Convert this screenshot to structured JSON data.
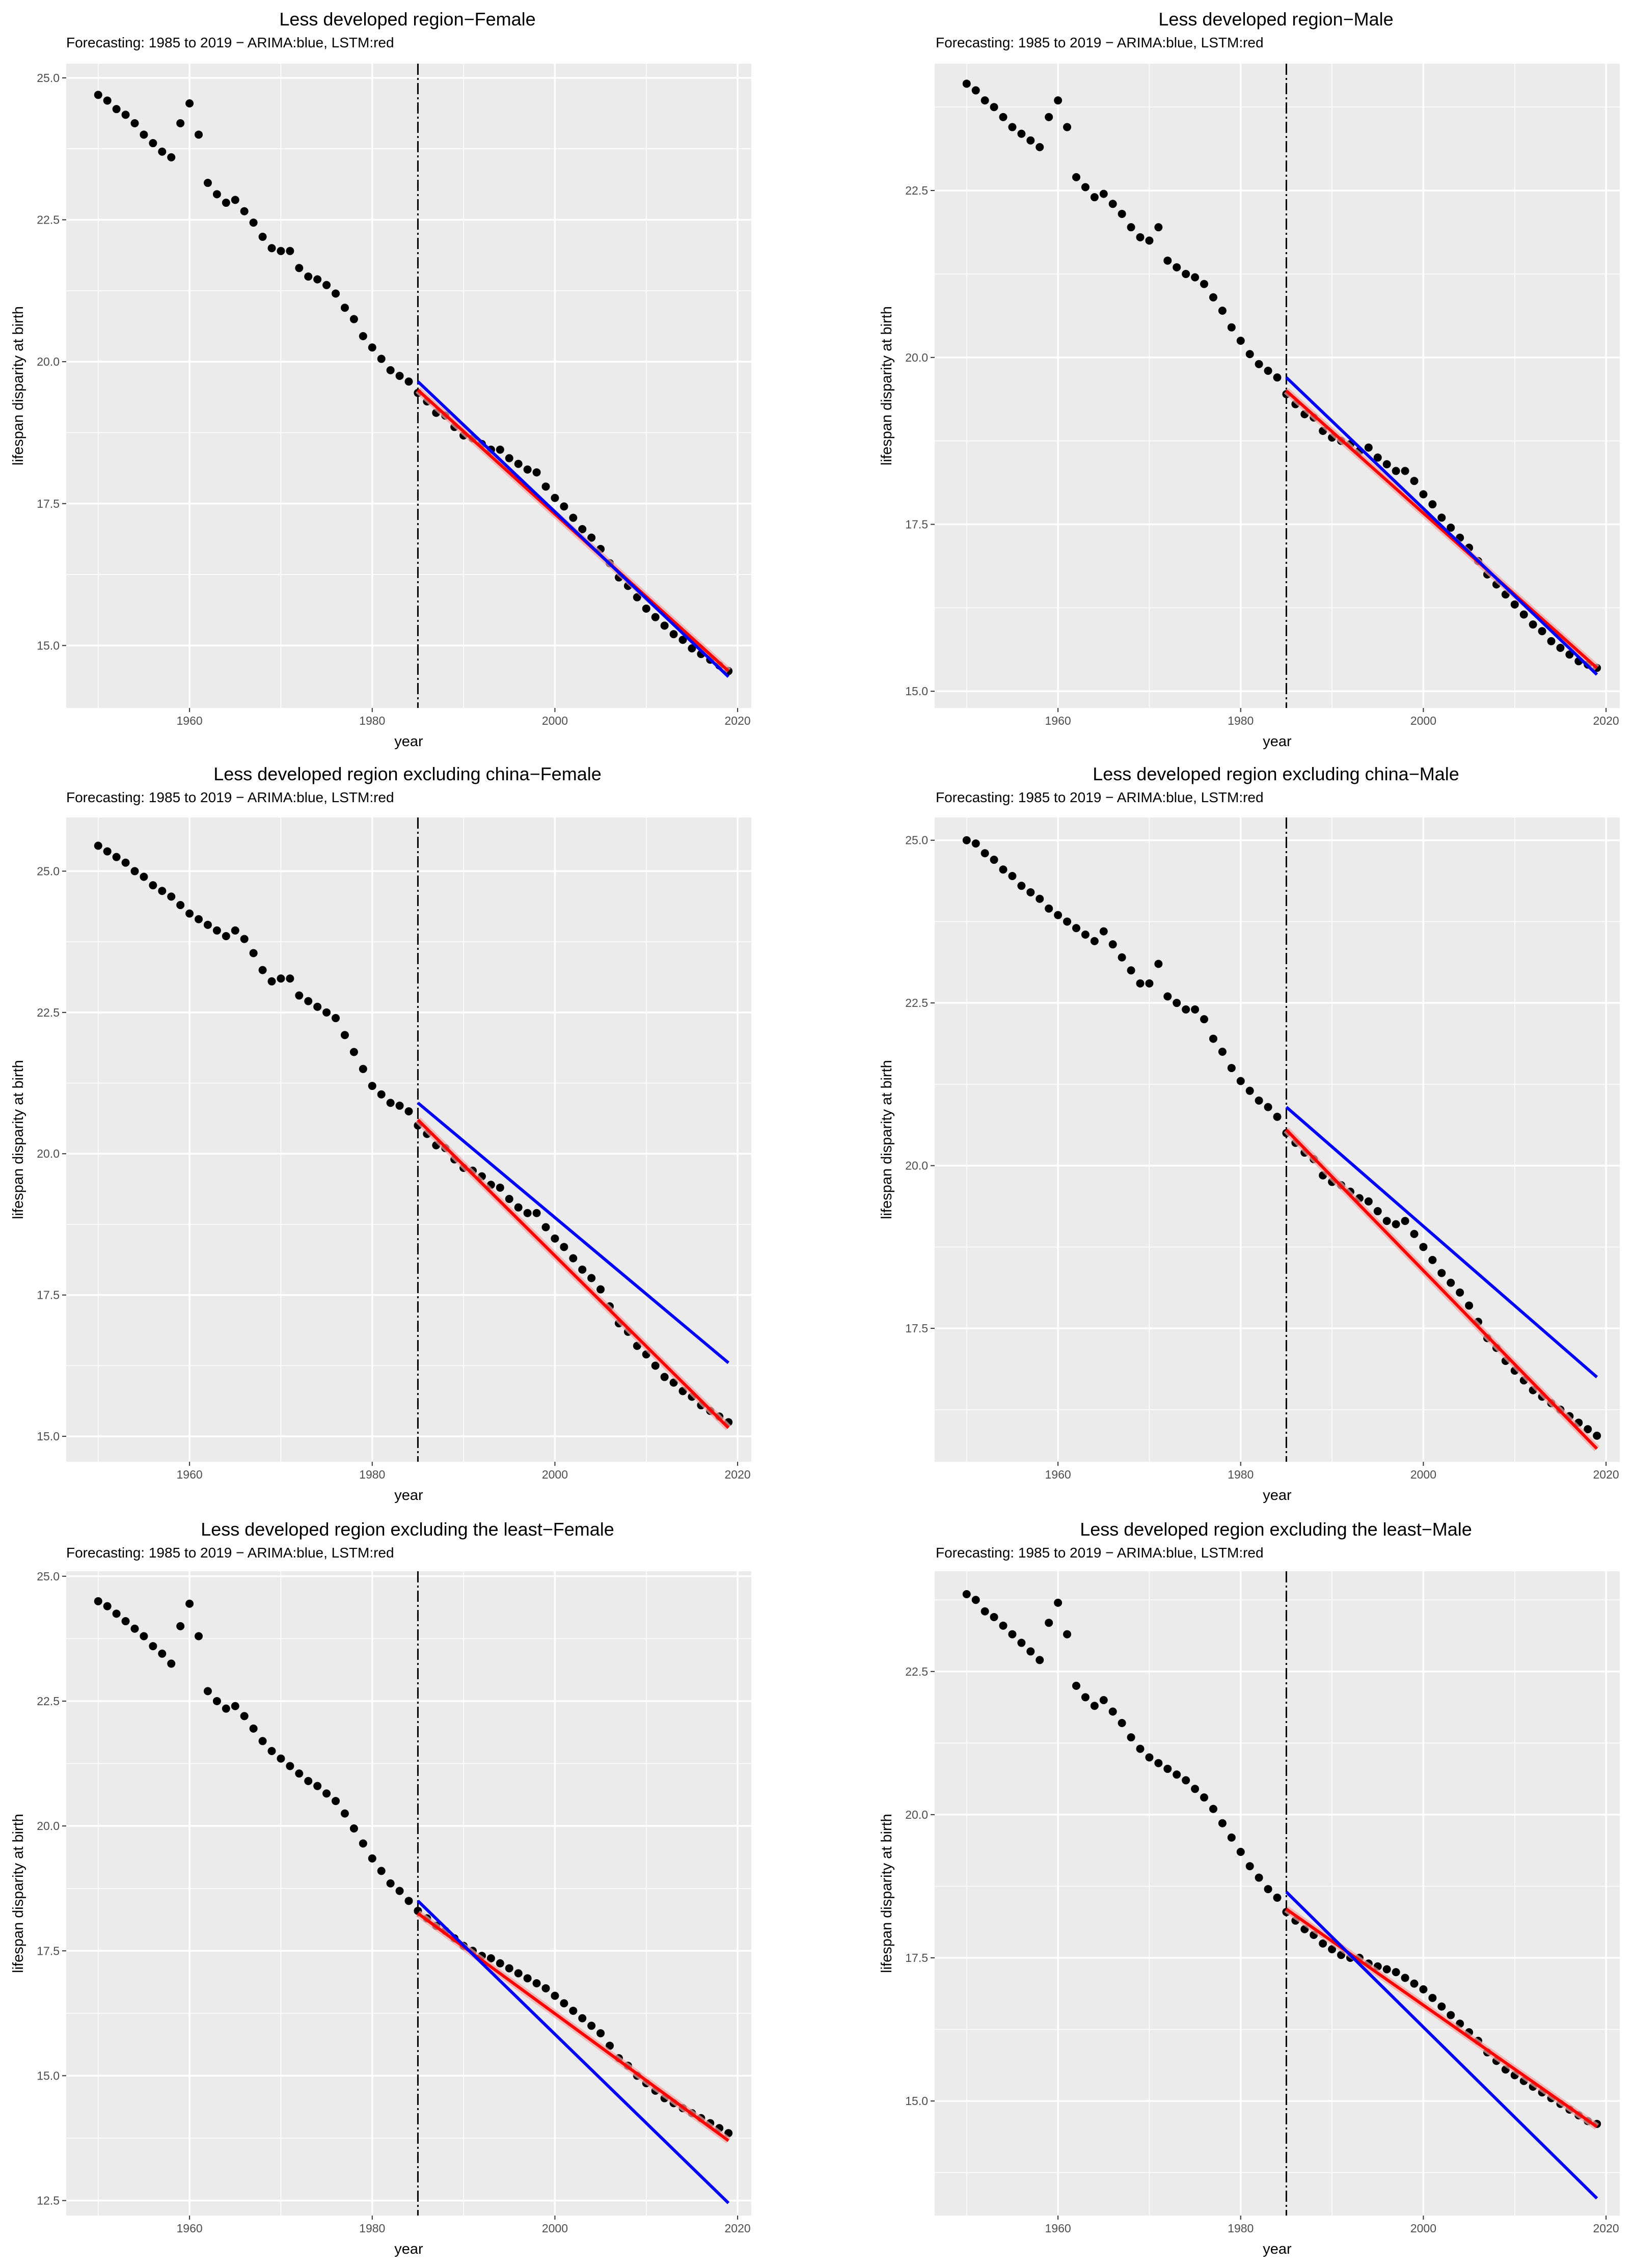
{
  "figure": {
    "subtitle": "Forecasting: 1985 to 2019 − ARIMA:blue, LSTM:red",
    "xlabel": "year",
    "ylabel": "lifespan disparity at birth",
    "colors": {
      "arima": "#0000ff",
      "lstm": "#ff0000",
      "points": "#000000",
      "panel": "#ebebeb",
      "grid": "#ffffff",
      "vline": "#000000"
    }
  },
  "chart_data": [
    {
      "type": "scatter",
      "title": "Less developed region−Female",
      "xlabel": "year",
      "ylabel": "lifespan disparity at birth",
      "xlim": [
        1946.5,
        2021.5
      ],
      "ylim": [
        13.9,
        25.25
      ],
      "xticks": [
        1960,
        1980,
        2000,
        2020
      ],
      "xtick_labels": [
        "1960",
        "1980",
        "2000",
        "2020"
      ],
      "yticks": [
        15,
        17.5,
        20,
        22.5,
        25
      ],
      "ytick_labels": [
        "15.0",
        "17.5",
        "20.0",
        "22.5",
        "25.0"
      ],
      "vline_x": 1985,
      "series": [
        {
          "name": "observed",
          "x_start": 1950,
          "y": [
            24.7,
            24.6,
            24.45,
            24.35,
            24.2,
            24.0,
            23.85,
            23.7,
            23.6,
            24.2,
            24.55,
            24.0,
            23.15,
            22.95,
            22.8,
            22.85,
            22.65,
            22.45,
            22.2,
            22.0,
            21.95,
            21.95,
            21.65,
            21.5,
            21.45,
            21.35,
            21.2,
            20.95,
            20.75,
            20.45,
            20.25,
            20.05,
            19.85,
            19.75,
            19.65,
            19.45,
            19.3,
            19.1,
            19.05,
            18.85,
            18.7,
            18.65,
            18.55,
            18.45,
            18.45,
            18.3,
            18.2,
            18.1,
            18.05,
            17.8,
            17.6,
            17.45,
            17.25,
            17.05,
            16.9,
            16.7,
            16.45,
            16.2,
            16.05,
            15.85,
            15.65,
            15.5,
            15.35,
            15.2,
            15.1,
            14.95,
            14.85,
            14.75,
            14.65,
            14.55
          ]
        },
        {
          "name": "ARIMA",
          "x": [
            1985,
            2019
          ],
          "y": [
            19.65,
            14.45
          ]
        },
        {
          "name": "LSTM",
          "x": [
            1985,
            2019
          ],
          "y": [
            19.5,
            14.55
          ]
        }
      ]
    },
    {
      "type": "scatter",
      "title": "Less developed region−Male",
      "xlabel": "year",
      "ylabel": "lifespan disparity at birth",
      "xlim": [
        1946.5,
        2021.5
      ],
      "ylim": [
        14.75,
        24.4
      ],
      "xticks": [
        1960,
        1980,
        2000,
        2020
      ],
      "xtick_labels": [
        "1960",
        "1980",
        "2000",
        "2020"
      ],
      "yticks": [
        15,
        17.5,
        20,
        22.5
      ],
      "ytick_labels": [
        "15.0",
        "17.5",
        "20.0",
        "22.5"
      ],
      "vline_x": 1985,
      "series": [
        {
          "name": "observed",
          "x_start": 1950,
          "y": [
            24.1,
            24.0,
            23.85,
            23.75,
            23.6,
            23.45,
            23.35,
            23.25,
            23.15,
            23.6,
            23.85,
            23.45,
            22.7,
            22.55,
            22.4,
            22.45,
            22.3,
            22.15,
            21.95,
            21.8,
            21.75,
            21.95,
            21.45,
            21.35,
            21.25,
            21.2,
            21.1,
            20.9,
            20.7,
            20.45,
            20.25,
            20.05,
            19.9,
            19.8,
            19.7,
            19.45,
            19.3,
            19.15,
            19.1,
            18.9,
            18.8,
            18.75,
            18.7,
            18.6,
            18.65,
            18.5,
            18.4,
            18.3,
            18.3,
            18.15,
            17.95,
            17.8,
            17.6,
            17.45,
            17.3,
            17.15,
            16.95,
            16.75,
            16.6,
            16.45,
            16.3,
            16.15,
            16.0,
            15.9,
            15.75,
            15.65,
            15.55,
            15.45,
            15.4,
            15.35
          ]
        },
        {
          "name": "ARIMA",
          "x": [
            1985,
            2019
          ],
          "y": [
            19.7,
            15.25
          ]
        },
        {
          "name": "LSTM",
          "x": [
            1985,
            2019
          ],
          "y": [
            19.5,
            15.35
          ]
        }
      ]
    },
    {
      "type": "scatter",
      "title": "Less developed region excluding china−Female",
      "xlabel": "year",
      "ylabel": "lifespan disparity at birth",
      "xlim": [
        1946.5,
        2021.5
      ],
      "ylim": [
        14.55,
        25.95
      ],
      "xticks": [
        1960,
        1980,
        2000,
        2020
      ],
      "xtick_labels": [
        "1960",
        "1980",
        "2000",
        "2020"
      ],
      "yticks": [
        15,
        17.5,
        20,
        22.5,
        25
      ],
      "ytick_labels": [
        "15.0",
        "17.5",
        "20.0",
        "22.5",
        "25.0"
      ],
      "vline_x": 1985,
      "series": [
        {
          "name": "observed",
          "x_start": 1950,
          "y": [
            25.45,
            25.35,
            25.25,
            25.15,
            25.0,
            24.9,
            24.75,
            24.65,
            24.55,
            24.4,
            24.25,
            24.15,
            24.05,
            23.95,
            23.85,
            23.95,
            23.8,
            23.55,
            23.25,
            23.05,
            23.1,
            23.1,
            22.8,
            22.7,
            22.6,
            22.5,
            22.4,
            22.1,
            21.8,
            21.5,
            21.2,
            21.05,
            20.9,
            20.85,
            20.75,
            20.5,
            20.35,
            20.15,
            20.1,
            19.9,
            19.75,
            19.7,
            19.6,
            19.45,
            19.4,
            19.2,
            19.05,
            18.95,
            18.95,
            18.7,
            18.5,
            18.35,
            18.15,
            17.95,
            17.8,
            17.6,
            17.3,
            17.0,
            16.85,
            16.6,
            16.45,
            16.25,
            16.05,
            15.95,
            15.8,
            15.7,
            15.55,
            15.45,
            15.35,
            15.25
          ]
        },
        {
          "name": "ARIMA",
          "x": [
            1985,
            2019
          ],
          "y": [
            20.9,
            16.3
          ]
        },
        {
          "name": "LSTM",
          "x": [
            1985,
            2019
          ],
          "y": [
            20.6,
            15.15
          ]
        }
      ]
    },
    {
      "type": "scatter",
      "title": "Less developed region excluding china−Male",
      "xlabel": "year",
      "ylabel": "lifespan disparity at birth",
      "xlim": [
        1946.5,
        2021.5
      ],
      "ylim": [
        15.45,
        25.35
      ],
      "xticks": [
        1960,
        1980,
        2000,
        2020
      ],
      "xtick_labels": [
        "1960",
        "1980",
        "2000",
        "2020"
      ],
      "yticks": [
        17.5,
        20,
        22.5,
        25
      ],
      "ytick_labels": [
        "17.5",
        "20.0",
        "22.5",
        "25.0"
      ],
      "vline_x": 1985,
      "series": [
        {
          "name": "observed",
          "x_start": 1950,
          "y": [
            25.0,
            24.95,
            24.8,
            24.7,
            24.55,
            24.45,
            24.3,
            24.2,
            24.1,
            23.95,
            23.85,
            23.75,
            23.65,
            23.55,
            23.45,
            23.6,
            23.4,
            23.2,
            23.0,
            22.8,
            22.8,
            23.1,
            22.6,
            22.5,
            22.4,
            22.4,
            22.25,
            21.95,
            21.75,
            21.5,
            21.3,
            21.15,
            21.0,
            20.9,
            20.75,
            20.5,
            20.35,
            20.2,
            20.1,
            19.85,
            19.75,
            19.7,
            19.6,
            19.5,
            19.45,
            19.3,
            19.15,
            19.1,
            19.15,
            18.95,
            18.75,
            18.55,
            18.35,
            18.2,
            18.05,
            17.85,
            17.6,
            17.35,
            17.2,
            17.0,
            16.85,
            16.7,
            16.55,
            16.45,
            16.35,
            16.25,
            16.15,
            16.05,
            15.95,
            15.85
          ]
        },
        {
          "name": "ARIMA",
          "x": [
            1985,
            2019
          ],
          "y": [
            20.9,
            16.75
          ]
        },
        {
          "name": "LSTM",
          "x": [
            1985,
            2019
          ],
          "y": [
            20.55,
            15.65
          ]
        }
      ]
    },
    {
      "type": "scatter",
      "title": "Less developed region excluding the least−Female",
      "xlabel": "year",
      "ylabel": "lifespan disparity at birth",
      "xlim": [
        1946.5,
        2021.5
      ],
      "ylim": [
        12.2,
        25.1
      ],
      "xticks": [
        1960,
        1980,
        2000,
        2020
      ],
      "xtick_labels": [
        "1960",
        "1980",
        "2000",
        "2020"
      ],
      "yticks": [
        12.5,
        15,
        17.5,
        20,
        22.5,
        25
      ],
      "ytick_labels": [
        "12.5",
        "15.0",
        "17.5",
        "20.0",
        "22.5",
        "25.0"
      ],
      "vline_x": 1985,
      "series": [
        {
          "name": "observed",
          "x_start": 1950,
          "y": [
            24.5,
            24.4,
            24.25,
            24.1,
            23.95,
            23.8,
            23.6,
            23.45,
            23.25,
            24.0,
            24.45,
            23.8,
            22.7,
            22.5,
            22.35,
            22.4,
            22.2,
            21.95,
            21.7,
            21.5,
            21.35,
            21.2,
            21.05,
            20.9,
            20.8,
            20.65,
            20.5,
            20.25,
            19.95,
            19.65,
            19.35,
            19.1,
            18.85,
            18.7,
            18.5,
            18.3,
            18.15,
            18.0,
            17.9,
            17.75,
            17.6,
            17.5,
            17.4,
            17.35,
            17.25,
            17.15,
            17.05,
            16.95,
            16.85,
            16.75,
            16.6,
            16.45,
            16.3,
            16.15,
            16.0,
            15.85,
            15.6,
            15.35,
            15.2,
            15.0,
            14.85,
            14.7,
            14.55,
            14.45,
            14.35,
            14.25,
            14.15,
            14.05,
            13.95,
            13.85
          ]
        },
        {
          "name": "ARIMA",
          "x": [
            1985,
            2019
          ],
          "y": [
            18.5,
            12.45
          ]
        },
        {
          "name": "LSTM",
          "x": [
            1985,
            2019
          ],
          "y": [
            18.25,
            13.7
          ]
        }
      ]
    },
    {
      "type": "scatter",
      "title": "Less developed region excluding the least−Male",
      "xlabel": "year",
      "ylabel": "lifespan disparity at birth",
      "xlim": [
        1946.5,
        2021.5
      ],
      "ylim": [
        13.0,
        24.25
      ],
      "xticks": [
        1960,
        1980,
        2000,
        2020
      ],
      "xtick_labels": [
        "1960",
        "1980",
        "2000",
        "2020"
      ],
      "yticks": [
        15,
        17.5,
        20,
        22.5
      ],
      "ytick_labels": [
        "15.0",
        "17.5",
        "20.0",
        "22.5"
      ],
      "vline_x": 1985,
      "series": [
        {
          "name": "observed",
          "x_start": 1950,
          "y": [
            23.85,
            23.75,
            23.55,
            23.45,
            23.3,
            23.15,
            23.0,
            22.85,
            22.7,
            23.35,
            23.7,
            23.15,
            22.25,
            22.05,
            21.9,
            22.0,
            21.8,
            21.6,
            21.35,
            21.15,
            21.0,
            20.9,
            20.8,
            20.7,
            20.6,
            20.45,
            20.3,
            20.1,
            19.85,
            19.6,
            19.35,
            19.1,
            18.9,
            18.7,
            18.55,
            18.3,
            18.15,
            18.0,
            17.9,
            17.75,
            17.65,
            17.55,
            17.5,
            17.5,
            17.4,
            17.35,
            17.3,
            17.25,
            17.15,
            17.05,
            16.95,
            16.8,
            16.65,
            16.5,
            16.35,
            16.2,
            16.05,
            15.85,
            15.7,
            15.55,
            15.45,
            15.35,
            15.25,
            15.15,
            15.05,
            14.95,
            14.85,
            14.75,
            14.65,
            14.6
          ]
        },
        {
          "name": "ARIMA",
          "x": [
            1985,
            2019
          ],
          "y": [
            18.65,
            13.3
          ]
        },
        {
          "name": "LSTM",
          "x": [
            1985,
            2019
          ],
          "y": [
            18.35,
            14.55
          ]
        }
      ]
    }
  ]
}
